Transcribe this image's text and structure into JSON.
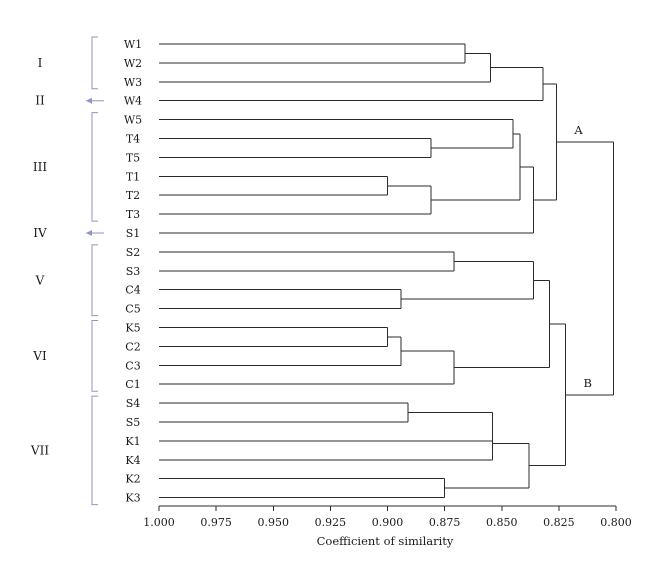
{
  "chart_data": {
    "type": "dendrogram",
    "xlabel": "Coefficient of similarity",
    "xlim": [
      1.0,
      0.8
    ],
    "x_ticks": [
      "1.000",
      "0.975",
      "0.950",
      "0.925",
      "0.900",
      "0.875",
      "0.850",
      "0.825",
      "0.800"
    ],
    "leaves": [
      "W1",
      "W2",
      "W3",
      "W4",
      "W5",
      "T4",
      "T5",
      "T1",
      "T2",
      "T3",
      "S1",
      "S2",
      "S3",
      "C4",
      "C5",
      "K5",
      "C2",
      "C3",
      "C1",
      "S4",
      "S5",
      "K1",
      "K4",
      "K2",
      "K3"
    ],
    "merges": [
      {
        "id": "m1",
        "children": [
          "W1",
          "W2"
        ],
        "similarity": 0.866
      },
      {
        "id": "m2",
        "children": [
          "m1",
          "W3"
        ],
        "similarity": 0.855
      },
      {
        "id": "m3",
        "children": [
          "m2",
          "W4"
        ],
        "similarity": 0.832
      },
      {
        "id": "m4",
        "children": [
          "T1",
          "T2"
        ],
        "similarity": 0.9
      },
      {
        "id": "m5",
        "children": [
          "m4",
          "T3"
        ],
        "similarity": 0.881
      },
      {
        "id": "m6",
        "children": [
          "T4",
          "T5"
        ],
        "similarity": 0.881
      },
      {
        "id": "m7",
        "children": [
          "W5",
          "m6"
        ],
        "similarity": 0.845
      },
      {
        "id": "m8",
        "children": [
          "m7",
          "m5"
        ],
        "similarity": 0.842
      },
      {
        "id": "m9",
        "children": [
          "m8",
          "S1"
        ],
        "similarity": 0.836
      },
      {
        "id": "m10",
        "children": [
          "m3",
          "m9"
        ],
        "similarity": 0.826
      },
      {
        "id": "m11",
        "children": [
          "S2",
          "S3"
        ],
        "similarity": 0.871
      },
      {
        "id": "m12",
        "children": [
          "C4",
          "C5"
        ],
        "similarity": 0.894
      },
      {
        "id": "m13",
        "children": [
          "m11",
          "m12"
        ],
        "similarity": 0.836
      },
      {
        "id": "m14",
        "children": [
          "K5",
          "C2"
        ],
        "similarity": 0.9
      },
      {
        "id": "m15",
        "children": [
          "m14",
          "C3"
        ],
        "similarity": 0.894
      },
      {
        "id": "m16",
        "children": [
          "m15",
          "C1"
        ],
        "similarity": 0.871
      },
      {
        "id": "m17",
        "children": [
          "m13",
          "m16"
        ],
        "similarity": 0.829
      },
      {
        "id": "m18",
        "children": [
          "S4",
          "S5"
        ],
        "similarity": 0.891
      },
      {
        "id": "m19",
        "children": [
          "m18",
          "K1"
        ],
        "similarity": 0.854
      },
      {
        "id": "m20",
        "children": [
          "m19",
          "K4"
        ],
        "similarity": 0.854
      },
      {
        "id": "m21",
        "children": [
          "K2",
          "K3"
        ],
        "similarity": 0.875
      },
      {
        "id": "m22",
        "children": [
          "m20",
          "m21"
        ],
        "similarity": 0.838
      },
      {
        "id": "m23",
        "children": [
          "m17",
          "m22"
        ],
        "similarity": 0.822
      },
      {
        "id": "m24",
        "children": [
          "m10",
          "m23"
        ],
        "similarity": 0.801
      }
    ],
    "node_labels": [
      {
        "node": "m10",
        "label": "A"
      },
      {
        "node": "m23",
        "label": "B"
      }
    ],
    "groups": [
      {
        "label": "I",
        "leaves": [
          "W1",
          "W3"
        ],
        "marker": "bracket"
      },
      {
        "label": "II",
        "leaves": [
          "W4"
        ],
        "marker": "arrow"
      },
      {
        "label": "III",
        "leaves": [
          "W5",
          "T3"
        ],
        "marker": "bracket"
      },
      {
        "label": "IV",
        "leaves": [
          "S1"
        ],
        "marker": "arrow"
      },
      {
        "label": "V",
        "leaves": [
          "S2",
          "C5"
        ],
        "marker": "bracket"
      },
      {
        "label": "VI",
        "leaves": [
          "K5",
          "C1"
        ],
        "marker": "bracket"
      },
      {
        "label": "VII",
        "leaves": [
          "S4",
          "K3"
        ],
        "marker": "bracket"
      }
    ],
    "colors": {
      "lines": "#2b2b2b",
      "group_markers": "#8f95c6"
    }
  }
}
